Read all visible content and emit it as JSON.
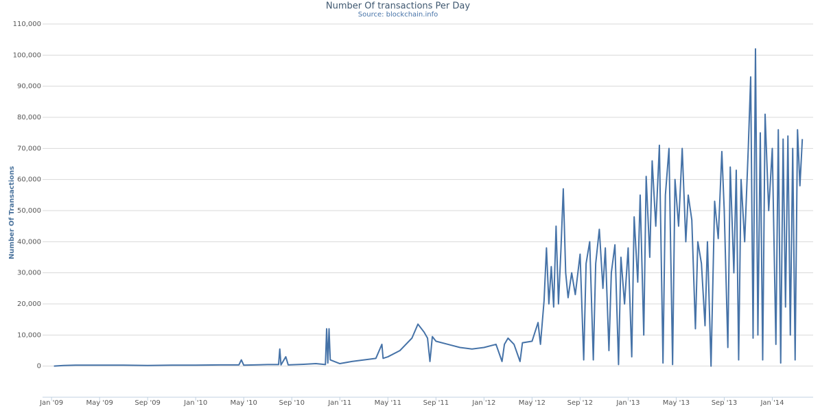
{
  "chart_data": {
    "type": "line",
    "title": "Number Of transactions Per Day",
    "subtitle": "Source: blockchain.info",
    "y_label": "Number Of Transactions",
    "xlim": [
      -0.75,
      63.4
    ],
    "ylim": [
      -10000,
      110000
    ],
    "xticks": [
      {
        "value": 0,
        "label": "Jan '09"
      },
      {
        "value": 4,
        "label": "May '09"
      },
      {
        "value": 8,
        "label": "Sep '09"
      },
      {
        "value": 12,
        "label": "Jan '10"
      },
      {
        "value": 16,
        "label": "May '10"
      },
      {
        "value": 20,
        "label": "Sep '10"
      },
      {
        "value": 24,
        "label": "Jan '11"
      },
      {
        "value": 28,
        "label": "May '11"
      },
      {
        "value": 32,
        "label": "Sep '11"
      },
      {
        "value": 36,
        "label": "Jan '12"
      },
      {
        "value": 40,
        "label": "May '12"
      },
      {
        "value": 44,
        "label": "Sep '12"
      },
      {
        "value": 48,
        "label": "Jan '13"
      },
      {
        "value": 52,
        "label": "May '13"
      },
      {
        "value": 56,
        "label": "Sep '13"
      },
      {
        "value": 60,
        "label": "Jan '14"
      }
    ],
    "yticks": [
      0,
      {
        "value": 10000,
        "label": "10,000"
      },
      {
        "value": 20000,
        "label": "20,000"
      },
      {
        "value": 30000,
        "label": "30,000"
      },
      {
        "value": 40000,
        "label": "40,000"
      },
      {
        "value": 50000,
        "label": "50,000"
      },
      {
        "value": 60000,
        "label": "60,000"
      },
      {
        "value": 70000,
        "label": "70,000"
      },
      {
        "value": 80000,
        "label": "80,000"
      },
      {
        "value": 90000,
        "label": "90,000"
      },
      {
        "value": 100000,
        "label": "100,000"
      },
      {
        "value": 110000,
        "label": "110,000"
      }
    ],
    "grid": true,
    "color": "#4572a7",
    "x": [
      0.2,
      1,
      2,
      4,
      6,
      8,
      10,
      12,
      14,
      15.6,
      15.8,
      16,
      18,
      18.9,
      19.0,
      19.1,
      19.5,
      19.7,
      21,
      22,
      22.8,
      22.9,
      23.0,
      23.1,
      23.2,
      24,
      25,
      26,
      27,
      27.5,
      27.6,
      28,
      29,
      30,
      30.5,
      31,
      31.3,
      31.5,
      31.7,
      32,
      33,
      34,
      35,
      36,
      37,
      37.5,
      37.7,
      38,
      38.5,
      39,
      39.2,
      40,
      40.5,
      40.7,
      41,
      41.2,
      41.4,
      41.6,
      41.8,
      42,
      42.2,
      42.4,
      42.6,
      42.8,
      43,
      43.3,
      43.6,
      44,
      44.3,
      44.5,
      44.8,
      45.1,
      45.3,
      45.6,
      45.9,
      46.1,
      46.4,
      46.6,
      46.9,
      47.2,
      47.4,
      47.7,
      48,
      48.3,
      48.5,
      48.8,
      49,
      49.3,
      49.5,
      49.8,
      50,
      50.3,
      50.6,
      50.9,
      51.1,
      51.4,
      51.7,
      51.9,
      52.2,
      52.5,
      52.8,
      53,
      53.3,
      53.6,
      53.8,
      54.1,
      54.4,
      54.6,
      54.9,
      55.2,
      55.5,
      55.8,
      56,
      56.3,
      56.5,
      56.8,
      57,
      57.2,
      57.4,
      57.7,
      58,
      58.2,
      58.4,
      58.6,
      58.8,
      59,
      59.2,
      59.4,
      59.7,
      60,
      60.3,
      60.5,
      60.7,
      60.9,
      61.1,
      61.3,
      61.5,
      61.7,
      61.9,
      62.1,
      62.3,
      62.5
    ],
    "values": [
      0,
      200,
      300,
      300,
      300,
      200,
      300,
      300,
      400,
      400,
      2000,
      300,
      500,
      500,
      5500,
      400,
      3000,
      400,
      600,
      800,
      500,
      12000,
      1000,
      12000,
      2000,
      800,
      1500,
      2000,
      2500,
      7000,
      2500,
      3000,
      5000,
      9000,
      13500,
      11000,
      9000,
      1500,
      9500,
      8000,
      7000,
      6000,
      5500,
      6000,
      7000,
      1500,
      7000,
      9000,
      7000,
      1500,
      7500,
      8000,
      14000,
      7000,
      21000,
      38000,
      20000,
      32000,
      19000,
      45000,
      20000,
      37000,
      57000,
      30000,
      22000,
      30000,
      23000,
      36000,
      2000,
      33000,
      40000,
      2000,
      33000,
      44000,
      25000,
      38000,
      5000,
      30000,
      39000,
      500,
      35000,
      20000,
      38000,
      3000,
      48000,
      27000,
      55000,
      10000,
      61000,
      35000,
      66000,
      45000,
      71000,
      1000,
      55000,
      70000,
      500,
      60000,
      45000,
      70000,
      40000,
      55000,
      47000,
      12000,
      40000,
      33000,
      13000,
      40000,
      0,
      53000,
      41000,
      69000,
      50000,
      6000,
      64000,
      30000,
      63000,
      2000,
      60000,
      40000,
      70000,
      93000,
      9000,
      102000,
      10000,
      75000,
      2000,
      81000,
      50000,
      70000,
      7000,
      76000,
      1000,
      73000,
      19000,
      74000,
      10000,
      70000,
      2000,
      76000,
      58000,
      73000
    ]
  }
}
